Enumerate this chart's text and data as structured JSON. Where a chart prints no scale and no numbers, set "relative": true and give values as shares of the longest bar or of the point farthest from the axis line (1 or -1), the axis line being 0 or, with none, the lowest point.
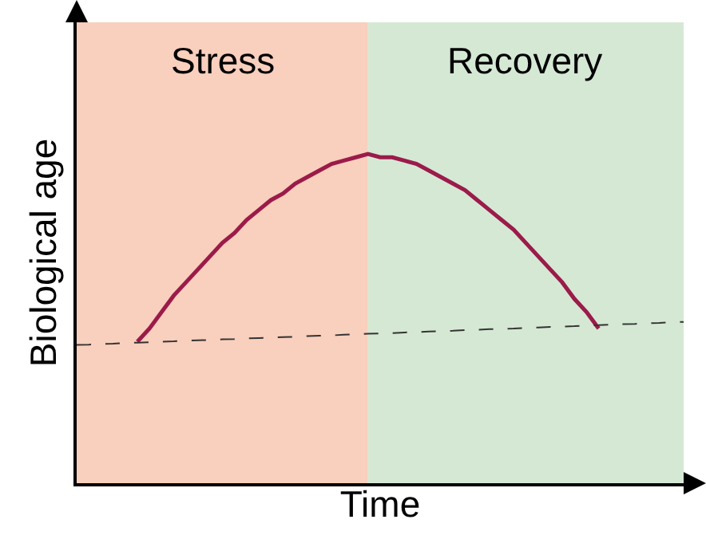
{
  "chart_data": {
    "type": "line",
    "relative": true,
    "xlabel": "Time",
    "ylabel": "Biological age",
    "categories": [
      null,
      null,
      null,
      null,
      null,
      null,
      null,
      null,
      null,
      null,
      null,
      null,
      null,
      null,
      null,
      null,
      null,
      null,
      null,
      null,
      null,
      null,
      null,
      null,
      null,
      null,
      null,
      null,
      null,
      null,
      null,
      null,
      null,
      null,
      null,
      null,
      null,
      null,
      null,
      null,
      null,
      null,
      null,
      null,
      null,
      null,
      null,
      null,
      null,
      null,
      null
    ],
    "series": [
      {
        "color": "#9b1b4a",
        "line_style": "solid",
        "values": [
          null,
          null,
          null,
          null,
          null,
          0.43,
          0.47,
          0.52,
          0.57,
          0.61,
          0.65,
          0.69,
          0.73,
          0.76,
          0.8,
          0.83,
          0.86,
          0.88,
          0.91,
          0.93,
          0.95,
          0.97,
          0.98,
          0.99,
          1.0,
          0.99,
          0.99,
          0.98,
          0.97,
          0.95,
          0.93,
          0.91,
          0.89,
          0.86,
          0.83,
          0.8,
          0.77,
          0.73,
          0.69,
          0.65,
          0.61,
          0.56,
          0.52,
          0.47,
          null,
          null,
          null,
          null,
          null,
          null,
          null
        ]
      },
      {
        "color": "#333333",
        "line_style": "dashed",
        "values": [
          0.42,
          0.421,
          0.423,
          0.424,
          0.426,
          0.427,
          0.428,
          0.43,
          0.431,
          0.433,
          0.434,
          0.435,
          0.437,
          0.438,
          0.44,
          0.441,
          0.442,
          0.444,
          0.445,
          0.447,
          0.448,
          0.449,
          0.451,
          0.452,
          0.454,
          0.455,
          0.456,
          0.458,
          0.459,
          0.461,
          0.462,
          0.463,
          0.465,
          0.466,
          0.468,
          0.469,
          0.47,
          0.472,
          0.473,
          0.475,
          0.476,
          0.477,
          0.479,
          0.48,
          0.482,
          0.483,
          0.484,
          0.486,
          0.487,
          0.489,
          0.49
        ]
      }
    ],
    "annotations": [
      "Stress",
      "Recovery"
    ],
    "grid": false,
    "legend": false,
    "marker": "none",
    "tick_labels": false
  }
}
